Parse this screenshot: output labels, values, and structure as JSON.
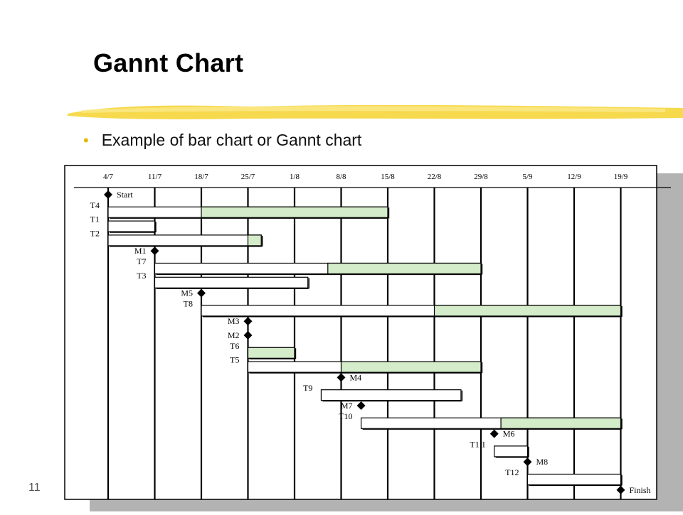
{
  "slide": {
    "title": "Gannt Chart",
    "bullet": "Example of bar chart or Gannt chart",
    "page_number": "11"
  },
  "colors": {
    "bar_fill": "#d4ecc9",
    "bar_outline": "#000000",
    "slide_shadow": "#b3b3b3",
    "title_stroke": "#f5d53a",
    "bullet": "#e6b800"
  },
  "chart_data": {
    "type": "gantt",
    "x_axis_type": "date",
    "date_ticks": [
      "2000-07-04",
      "2000-07-11",
      "2000-07-18",
      "2000-07-25",
      "2000-08-01",
      "2000-08-08",
      "2000-08-15",
      "2000-08-22",
      "2000-08-29",
      "2000-09-05",
      "2000-09-12",
      "2000-09-19"
    ],
    "tick_labels": [
      "4/7",
      "11/7",
      "18/7",
      "25/7",
      "1/8",
      "8/8",
      "15/8",
      "22/8",
      "29/8",
      "5/9",
      "12/9",
      "19/9"
    ],
    "grid": "vertical lines at ticks",
    "rows": [
      {
        "label": "Start",
        "type": "milestone",
        "date": "2000-07-04",
        "label_side": "right"
      },
      {
        "label": "T4",
        "type": "task",
        "start": "2000-07-04",
        "end": "2000-07-18",
        "float_end": "2000-08-15"
      },
      {
        "label": "T1",
        "type": "task",
        "start": "2000-07-04",
        "end": "2000-07-11",
        "float_end": null
      },
      {
        "label": "T2",
        "type": "task",
        "start": "2000-07-04",
        "end": "2000-07-25",
        "float_end": "2000-07-27"
      },
      {
        "label": "M1",
        "type": "milestone",
        "date": "2000-07-11",
        "label_side": "left"
      },
      {
        "label": "T7",
        "type": "task",
        "start": "2000-07-11",
        "end": "2000-08-06",
        "float_end": "2000-08-29"
      },
      {
        "label": "T3",
        "type": "task",
        "start": "2000-07-11",
        "end": "2000-08-03",
        "float_end": null
      },
      {
        "label": "M5",
        "type": "milestone",
        "date": "2000-07-18",
        "label_side": "left"
      },
      {
        "label": "T8",
        "type": "task",
        "start": "2000-07-18",
        "end": "2000-08-22",
        "float_end": "2000-09-19"
      },
      {
        "label": "M3",
        "type": "milestone",
        "date": "2000-07-25",
        "label_side": "left"
      },
      {
        "label": "M2",
        "type": "milestone",
        "date": "2000-07-25",
        "label_side": "left"
      },
      {
        "label": "T6",
        "type": "task",
        "start": "2000-07-25",
        "end": "2000-07-25",
        "float_end": "2000-08-01"
      },
      {
        "label": "T5",
        "type": "task",
        "start": "2000-07-25",
        "end": "2000-08-08",
        "float_end": "2000-08-29"
      },
      {
        "label": "M4",
        "type": "milestone",
        "date": "2000-08-08",
        "label_side": "right"
      },
      {
        "label": "T9",
        "type": "task",
        "start": "2000-08-05",
        "end": "2000-08-26",
        "float_end": null
      },
      {
        "label": "M7",
        "type": "milestone",
        "date": "2000-08-11",
        "label_side": "left"
      },
      {
        "label": "T10",
        "type": "task",
        "start": "2000-08-11",
        "end": "2000-09-01",
        "float_end": "2000-09-19"
      },
      {
        "label": "M6",
        "type": "milestone",
        "date": "2000-08-31",
        "label_side": "right"
      },
      {
        "label": "T1 1",
        "type": "task",
        "start": "2000-08-31",
        "end": "2000-09-05",
        "float_end": null
      },
      {
        "label": "M8",
        "type": "milestone",
        "date": "2000-09-05",
        "label_side": "right"
      },
      {
        "label": "T12",
        "type": "task",
        "start": "2000-09-05",
        "end": "2000-09-19",
        "float_end": null
      },
      {
        "label": "Finish",
        "type": "milestone",
        "date": "2000-09-19",
        "label_side": "right"
      }
    ]
  }
}
